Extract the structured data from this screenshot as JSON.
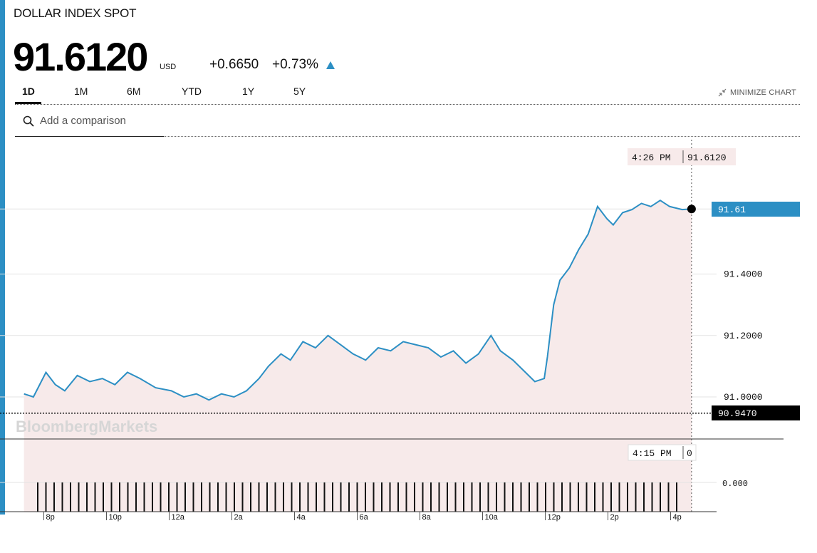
{
  "header": {
    "title": "DOLLAR INDEX SPOT",
    "price": "91.6120",
    "currency": "USD",
    "change": "+0.6650",
    "change_pct": "+0.73%",
    "up_color": "#2c8fc4"
  },
  "ranges": [
    {
      "label": "1D",
      "active": true
    },
    {
      "label": "1M",
      "active": false
    },
    {
      "label": "6M",
      "active": false
    },
    {
      "label": "YTD",
      "active": false
    },
    {
      "label": "1Y",
      "active": false
    },
    {
      "label": "5Y",
      "active": false
    }
  ],
  "minimize_label": "MINIMIZE CHART",
  "search": {
    "placeholder": "Add a comparison"
  },
  "watermark": "BloombergMarkets",
  "colors": {
    "line": "#2c8fc4",
    "area": "#f7eaea",
    "last_badge": "#2c8fc4",
    "prev_badge": "#000000"
  },
  "chart_data": {
    "type": "line",
    "x_tick_labels": [
      "8p",
      "10p",
      "12a",
      "2a",
      "4a",
      "6a",
      "8a",
      "10a",
      "12p",
      "2p",
      "4p"
    ],
    "x_hours": [
      20,
      22,
      24,
      26,
      28,
      30,
      32,
      34,
      36,
      38,
      40
    ],
    "ylim": [
      90.9,
      91.75
    ],
    "y_ticks": [
      91.0,
      91.2,
      91.4
    ],
    "y_tick_labels": [
      "91.0000",
      "91.2000",
      "91.4000"
    ],
    "last_value": 91.612,
    "last_label": "91.61",
    "previous_close": 90.947,
    "previous_close_label": "90.9470",
    "cursor_time": "4:26 PM",
    "cursor_value": "91.6120",
    "volume_cursor_time": "4:15 PM",
    "volume_cursor_value": "0",
    "volume_tick_label": "0.000",
    "series": [
      {
        "x": [
          19.3,
          19.6,
          20.0,
          20.3,
          20.6,
          21.0,
          21.4,
          21.8,
          22.2,
          22.6,
          23.0,
          23.5,
          24.0,
          24.4,
          24.8,
          25.2,
          25.6,
          26.0,
          26.4,
          26.8,
          27.1,
          27.5,
          27.8,
          28.2,
          28.6,
          29.0,
          29.4,
          29.8,
          30.2,
          30.6,
          31.0,
          31.4,
          31.8,
          32.2,
          32.6,
          33.0,
          33.4,
          33.8,
          34.2,
          34.5,
          34.9,
          35.3,
          35.6,
          35.9,
          36.0,
          36.2,
          36.4,
          36.7,
          37.0,
          37.3,
          37.6,
          37.9,
          38.1,
          38.4,
          38.7,
          39.0,
          39.3,
          39.6,
          39.9,
          40.3,
          40.6
        ],
        "y": [
          91.01,
          91.0,
          91.08,
          91.04,
          91.02,
          91.07,
          91.05,
          91.06,
          91.04,
          91.08,
          91.06,
          91.03,
          91.02,
          91.0,
          91.01,
          90.99,
          91.01,
          91.0,
          91.02,
          91.06,
          91.1,
          91.14,
          91.12,
          91.18,
          91.16,
          91.2,
          91.17,
          91.14,
          91.12,
          91.16,
          91.15,
          91.18,
          91.17,
          91.16,
          91.13,
          91.15,
          91.11,
          91.14,
          91.2,
          91.15,
          91.12,
          91.08,
          91.05,
          91.06,
          91.13,
          91.3,
          91.38,
          91.42,
          91.48,
          91.53,
          91.62,
          91.58,
          91.56,
          91.6,
          91.61,
          91.63,
          91.62,
          91.64,
          91.62,
          91.61,
          91.612
        ]
      }
    ]
  }
}
